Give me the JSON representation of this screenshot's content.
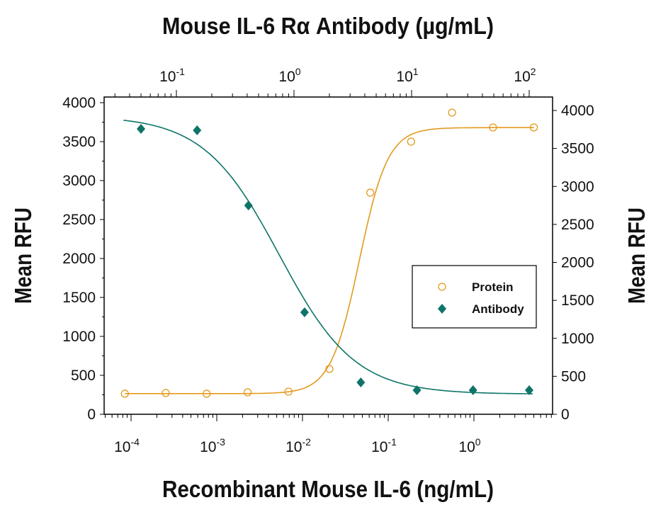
{
  "chart_data": {
    "type": "scatter",
    "top_xlabel": "Mouse IL-6 Rα Antibody (µg/mL)",
    "bottom_xlabel": "Recombinant Mouse IL-6 (ng/mL)",
    "left_ylabel": "Mean RFU",
    "right_ylabel": "Mean RFU",
    "bottom_xscale": "log",
    "top_xscale": "log",
    "bottom_xlim": [
      6e-05,
      8
    ],
    "top_xlim": [
      0.03,
      120
    ],
    "left_ylim": [
      0,
      4000
    ],
    "right_ylim": [
      0,
      4100
    ],
    "bottom_xticks": [
      {
        "base": "10",
        "exp": "-4"
      },
      {
        "base": "10",
        "exp": "-3"
      },
      {
        "base": "10",
        "exp": "-2"
      },
      {
        "base": "10",
        "exp": "-1"
      },
      {
        "base": "10",
        "exp": "0"
      }
    ],
    "top_xticks": [
      {
        "base": "10",
        "exp": "-1"
      },
      {
        "base": "10",
        "exp": "0"
      },
      {
        "base": "10",
        "exp": "1"
      },
      {
        "base": "10",
        "exp": "2"
      }
    ],
    "left_yticks": [
      "0",
      "500",
      "1000",
      "1500",
      "2000",
      "2500",
      "3000",
      "3500",
      "4000"
    ],
    "right_yticks": [
      "0",
      "500",
      "1000",
      "1500",
      "2000",
      "2500",
      "3000",
      "3500",
      "4000"
    ],
    "grid": false,
    "legend_position": "center-right",
    "series": [
      {
        "name": "Protein",
        "axis": "bottom-left",
        "marker": "open-circle",
        "color": "#E39A1E",
        "x": [
          8.47e-05,
          0.000254,
          0.000762,
          0.00229,
          0.00686,
          0.0206,
          0.0617,
          0.185,
          0.556,
          1.67,
          5
        ],
        "y": [
          264,
          273,
          264,
          282,
          291,
          582,
          2845,
          3500,
          3873,
          3682,
          3682
        ],
        "fit": {
          "bottom": 265,
          "top": 3680,
          "ec50": 0.046,
          "hill": 2.6
        }
      },
      {
        "name": "Antibody",
        "axis": "top-right",
        "marker": "filled-diamond",
        "color": "#0E7468",
        "x": [
          0.05,
          0.15,
          0.41,
          1.23,
          3.7,
          11.1,
          33.3,
          100
        ],
        "y": [
          3758,
          3739,
          2750,
          1343,
          420,
          317,
          317,
          317
        ],
        "fit": {
          "bottom": 265,
          "top": 3930,
          "ec50": 0.75,
          "hill": 1.35
        }
      }
    ]
  }
}
